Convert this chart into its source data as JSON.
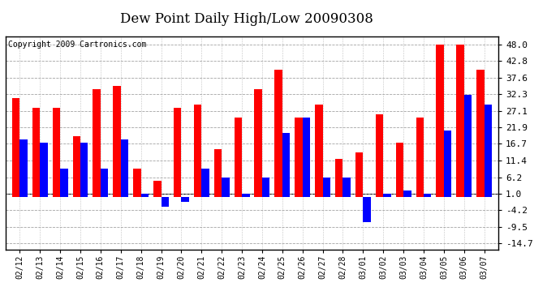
{
  "title": "Dew Point Daily High/Low 20090308",
  "copyright": "Copyright 2009 Cartronics.com",
  "dates": [
    "02/12",
    "02/13",
    "02/14",
    "02/15",
    "02/16",
    "02/17",
    "02/18",
    "02/19",
    "02/20",
    "02/21",
    "02/22",
    "02/23",
    "02/24",
    "02/25",
    "02/26",
    "02/27",
    "02/28",
    "03/01",
    "03/02",
    "03/03",
    "03/04",
    "03/05",
    "03/06",
    "03/07"
  ],
  "highs": [
    31.0,
    28.0,
    28.0,
    19.0,
    34.0,
    35.0,
    9.0,
    5.0,
    28.0,
    29.0,
    15.0,
    25.0,
    34.0,
    40.0,
    25.0,
    29.0,
    12.0,
    14.0,
    26.0,
    17.0,
    25.0,
    48.0,
    48.0,
    40.0
  ],
  "lows": [
    18.0,
    17.0,
    9.0,
    17.0,
    9.0,
    18.0,
    1.0,
    -3.0,
    -1.5,
    9.0,
    6.0,
    1.0,
    6.0,
    20.0,
    25.0,
    6.0,
    6.0,
    -8.0,
    1.0,
    2.0,
    1.0,
    21.0,
    32.0,
    29.0
  ],
  "bar_color_high": "#ff0000",
  "bar_color_low": "#0000ff",
  "background_color": "#ffffff",
  "grid_color": "#999999",
  "yticks": [
    48.0,
    42.8,
    37.6,
    32.3,
    27.1,
    21.9,
    16.7,
    11.4,
    6.2,
    1.0,
    -4.2,
    -9.5,
    -14.7
  ],
  "ylim": [
    -16.5,
    50.5
  ],
  "bar_width": 0.38,
  "title_fontsize": 12,
  "copyright_fontsize": 7
}
